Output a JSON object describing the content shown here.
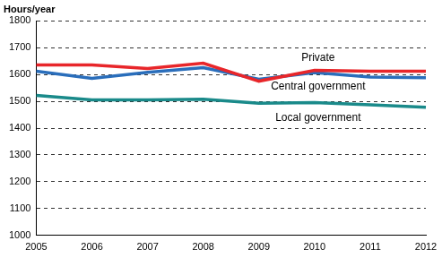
{
  "chart_data": {
    "type": "line",
    "y_label": "Hours/year",
    "categories": [
      "2005",
      "2006",
      "2007",
      "2008",
      "2009",
      "2010",
      "2011",
      "2012"
    ],
    "series": [
      {
        "name": "Private",
        "color": "#e8262a",
        "values": [
          1635,
          1635,
          1622,
          1642,
          1575,
          1615,
          1612,
          1612
        ]
      },
      {
        "name": "Central government",
        "color": "#2a6ebb",
        "values": [
          1612,
          1585,
          1608,
          1625,
          1582,
          1607,
          1590,
          1588
        ]
      },
      {
        "name": "Local government",
        "color": "#1a8a8a",
        "values": [
          1522,
          1505,
          1505,
          1508,
          1493,
          1495,
          1487,
          1478
        ]
      }
    ],
    "ylim": [
      1000,
      1800
    ],
    "yticks": [
      1000,
      1100,
      1200,
      1300,
      1400,
      1500,
      1600,
      1700,
      1800
    ],
    "grid": true
  }
}
